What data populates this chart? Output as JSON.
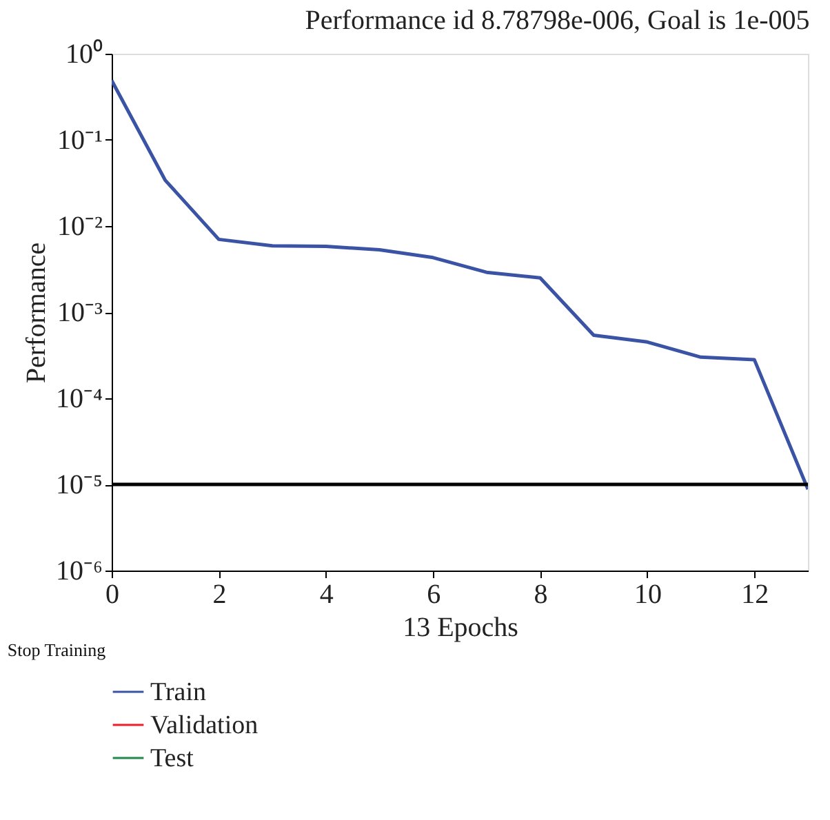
{
  "chart_data": {
    "type": "line",
    "title": "Performance id 8.78798e-006, Goal is 1e-005",
    "xlabel": "13 Epochs",
    "ylabel": "Performance",
    "x": [
      0,
      1,
      2,
      3,
      4,
      5,
      6,
      7,
      8,
      9,
      10,
      11,
      12,
      13
    ],
    "series": [
      {
        "name": "Train",
        "color": "#3b53a4",
        "values": [
          0.49,
          0.034,
          0.007,
          0.0059,
          0.0058,
          0.0053,
          0.0043,
          0.0029,
          0.0025,
          0.00054,
          0.00045,
          0.0003,
          0.00028,
          8.78798e-06
        ]
      },
      {
        "name": "Validation",
        "color": "#e8202a",
        "values": [
          null,
          null,
          null,
          null,
          null,
          null,
          null,
          null,
          null,
          null,
          null,
          null,
          null,
          null
        ]
      },
      {
        "name": "Test",
        "color": "#1f8a4c",
        "values": [
          null,
          null,
          null,
          null,
          null,
          null,
          null,
          null,
          null,
          null,
          null,
          null,
          null,
          null
        ]
      }
    ],
    "log": "y",
    "xlim": [
      0,
      13
    ],
    "xticks": [
      0,
      2,
      4,
      6,
      8,
      10,
      12
    ],
    "ylim": [
      1e-06,
      1
    ],
    "yticks": [
      {
        "value": 1e-06,
        "label": "10⁻⁶"
      },
      {
        "value": 1e-05,
        "label": "10⁻⁵"
      },
      {
        "value": 0.0001,
        "label": "10⁻⁴"
      },
      {
        "value": 0.001,
        "label": "10⁻³"
      },
      {
        "value": 0.01,
        "label": "10⁻²"
      },
      {
        "value": 0.1,
        "label": "10⁻¹"
      },
      {
        "value": 1,
        "label": "10⁰"
      }
    ],
    "ref_lines": [
      {
        "axis": "y",
        "value": 1e-05,
        "color": "#000000"
      }
    ],
    "annotations": [
      "Stop Training"
    ],
    "legend": "bottom",
    "grid": false,
    "marker": "none",
    "line_style": "solid"
  }
}
